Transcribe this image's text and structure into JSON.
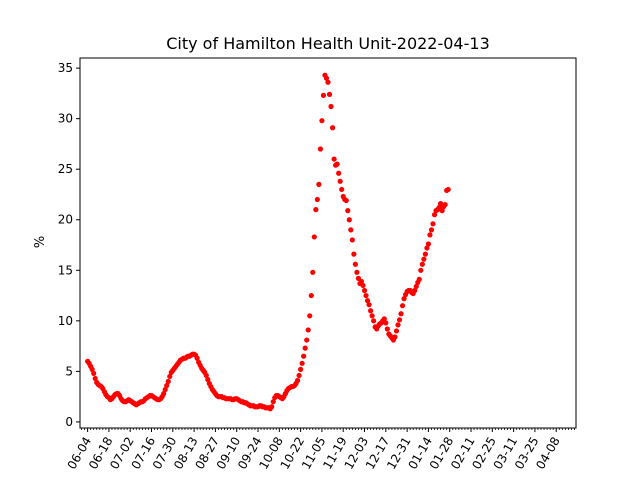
{
  "chart_data": {
    "type": "scatter",
    "title": "City of Hamilton Health Unit-2022-04-13",
    "xlabel": "",
    "ylabel": "%",
    "x_axis": "date",
    "xlim": [
      "2021-05-30",
      "2022-04-21"
    ],
    "ylim": [
      -0.6,
      36
    ],
    "y_ticks": [
      0,
      5,
      10,
      15,
      20,
      25,
      30,
      35
    ],
    "x_tick_labels": [
      "06-04",
      "06-18",
      "07-02",
      "07-16",
      "07-30",
      "08-13",
      "08-27",
      "09-10",
      "09-24",
      "10-08",
      "10-22",
      "11-05",
      "11-19",
      "12-03",
      "12-17",
      "12-31",
      "01-14",
      "01-28",
      "02-11",
      "02-25",
      "03-11",
      "03-25",
      "04-08"
    ],
    "x_ticks": [
      "2021-06-04",
      "2021-06-18",
      "2021-07-02",
      "2021-07-16",
      "2021-07-30",
      "2021-08-13",
      "2021-08-27",
      "2021-09-10",
      "2021-09-24",
      "2021-10-08",
      "2021-10-22",
      "2021-11-05",
      "2021-11-19",
      "2021-12-03",
      "2021-12-17",
      "2021-12-31",
      "2022-01-14",
      "2022-01-28",
      "2022-02-11",
      "2022-02-25",
      "2022-03-11",
      "2022-03-25",
      "2022-04-08"
    ],
    "grid": false,
    "marker_color": "#ff0000",
    "series": [
      {
        "start_date": "2021-06-04",
        "step_days": 1,
        "values": [
          6.0,
          5.8,
          5.5,
          5.2,
          4.8,
          4.3,
          3.9,
          3.7,
          3.6,
          3.5,
          3.3,
          3.0,
          2.7,
          2.5,
          2.4,
          2.2,
          2.3,
          2.5,
          2.7,
          2.8,
          2.8,
          2.6,
          2.3,
          2.1,
          2.0,
          2.0,
          2.1,
          2.2,
          2.1,
          2.0,
          1.9,
          1.8,
          1.7,
          1.8,
          1.9,
          2.0,
          2.0,
          2.1,
          2.3,
          2.4,
          2.5,
          2.6,
          2.6,
          2.5,
          2.4,
          2.3,
          2.2,
          2.2,
          2.3,
          2.5,
          2.8,
          3.2,
          3.6,
          4.0,
          4.5,
          4.9,
          5.1,
          5.3,
          5.5,
          5.7,
          5.9,
          6.1,
          6.2,
          6.3,
          6.3,
          6.4,
          6.5,
          6.5,
          6.6,
          6.7,
          6.7,
          6.6,
          6.3,
          5.9,
          5.6,
          5.3,
          5.1,
          4.9,
          4.6,
          4.2,
          3.8,
          3.5,
          3.2,
          3.0,
          2.8,
          2.6,
          2.5,
          2.5,
          2.5,
          2.4,
          2.4,
          2.3,
          2.3,
          2.3,
          2.3,
          2.2,
          2.2,
          2.3,
          2.3,
          2.2,
          2.1,
          2.0,
          2.0,
          1.9,
          1.9,
          1.8,
          1.7,
          1.6,
          1.6,
          1.6,
          1.5,
          1.5,
          1.5,
          1.6,
          1.6,
          1.5,
          1.5,
          1.4,
          1.4,
          1.4,
          1.3,
          1.5,
          2.0,
          2.4,
          2.6,
          2.6,
          2.5,
          2.4,
          2.3,
          2.5,
          2.8,
          3.1,
          3.3,
          3.4,
          3.5,
          3.5,
          3.6,
          3.8,
          4.1,
          4.6,
          5.2,
          5.8,
          6.5,
          7.3,
          8.1,
          9.1,
          10.5,
          12.5,
          14.8,
          18.3,
          21.0,
          22.0,
          23.5,
          27.0,
          29.8,
          32.3,
          34.3,
          34.0,
          33.6,
          32.4,
          31.2,
          29.1,
          26.0,
          25.4,
          25.5,
          24.6,
          23.8,
          23.0,
          22.3,
          22.0,
          21.9,
          20.9,
          20.0,
          19.0,
          18.0,
          16.6,
          15.6,
          14.8,
          14.2,
          13.7,
          13.9,
          13.5,
          13.0,
          12.5,
          12.0,
          11.6,
          11.0,
          10.5,
          10.0,
          9.4,
          9.2,
          9.5,
          9.7,
          9.8,
          10.0,
          10.2,
          9.8,
          9.2,
          8.7,
          8.5,
          8.3,
          8.1,
          8.4,
          9.0,
          9.6,
          10.1,
          10.7,
          11.5,
          12.2,
          12.6,
          12.9,
          13.0,
          13.0,
          12.8,
          12.7,
          13.0,
          13.4,
          13.8,
          14.1,
          15.0,
          15.6,
          16.1,
          16.6,
          17.2,
          17.6,
          18.5,
          19.0,
          19.6,
          20.5,
          20.9,
          21.0,
          21.2,
          21.6,
          20.9,
          21.3,
          21.5,
          22.9,
          23.0
        ]
      }
    ]
  }
}
